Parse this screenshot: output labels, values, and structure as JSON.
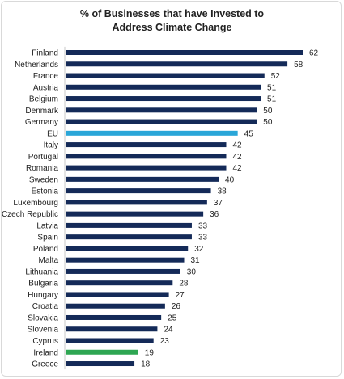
{
  "chart_data": {
    "type": "bar",
    "orientation": "horizontal",
    "title_lines": [
      "% of Businesses that have Invested to",
      "Address Climate Change"
    ],
    "categories": [
      "Finland",
      "Netherlands",
      "France",
      "Austria",
      "Belgium",
      "Denmark",
      "Germany",
      "EU",
      "Italy",
      "Portugal",
      "Romania",
      "Sweden",
      "Estonia",
      "Luxembourg",
      "Czech Republic",
      "Latvia",
      "Spain",
      "Poland",
      "Malta",
      "Lithuania",
      "Bulgaria",
      "Hungary",
      "Croatia",
      "Slovakia",
      "Slovenia",
      "Cyprus",
      "Ireland",
      "Greece"
    ],
    "values": [
      62,
      58,
      52,
      51,
      51,
      50,
      50,
      45,
      42,
      42,
      42,
      40,
      38,
      37,
      36,
      33,
      33,
      32,
      31,
      30,
      28,
      27,
      26,
      25,
      24,
      23,
      19,
      18
    ],
    "xlim": [
      0,
      62
    ],
    "grid": false,
    "legend": "none",
    "colors": {
      "default": "#142a58",
      "highlight": {
        "EU": "#2aa6d8",
        "Ireland": "#2ea652"
      }
    }
  }
}
